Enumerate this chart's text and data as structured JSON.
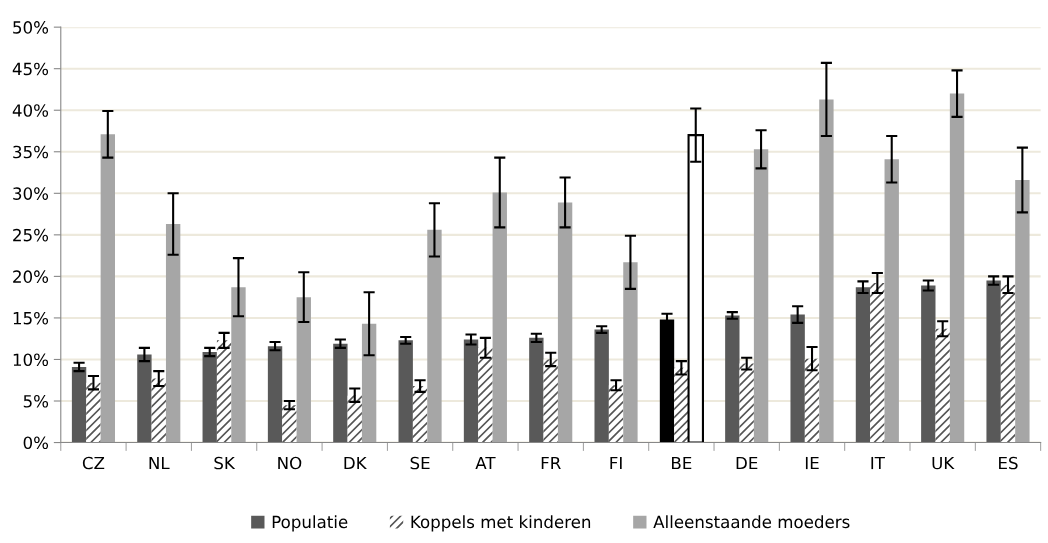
{
  "chart_data": {
    "type": "bar",
    "categories": [
      "CZ",
      "NL",
      "SK",
      "NO",
      "DK",
      "SE",
      "AT",
      "FR",
      "FI",
      "BE",
      "DE",
      "IE",
      "IT",
      "UK",
      "ES"
    ],
    "series": [
      {
        "name": "Populatie",
        "color": "#595959",
        "colors": [
          "#595959",
          "#595959",
          "#595959",
          "#595959",
          "#595959",
          "#595959",
          "#595959",
          "#595959",
          "#595959",
          "#000000",
          "#595959",
          "#595959",
          "#595959",
          "#595959",
          "#595959"
        ],
        "values": [
          9.1,
          10.6,
          10.9,
          11.6,
          11.9,
          12.3,
          12.4,
          12.6,
          13.6,
          14.8,
          15.3,
          15.4,
          18.7,
          18.9,
          19.5
        ],
        "errors": [
          0.5,
          0.8,
          0.5,
          0.5,
          0.5,
          0.4,
          0.6,
          0.5,
          0.4,
          0.7,
          0.4,
          1.0,
          0.7,
          0.6,
          0.5
        ]
      },
      {
        "name": "Koppels met kinderen",
        "color": "#ffffff",
        "values": [
          7.2,
          7.7,
          12.3,
          4.5,
          5.7,
          6.8,
          11.4,
          10.0,
          6.9,
          9.0,
          9.5,
          10.1,
          19.2,
          13.7,
          19.0
        ],
        "errors": [
          0.8,
          0.9,
          0.9,
          0.5,
          0.8,
          0.7,
          1.2,
          0.8,
          0.6,
          0.8,
          0.7,
          1.4,
          1.2,
          0.9,
          1.0
        ]
      },
      {
        "name": "Alleenstaande moeders",
        "color": "#a6a6a6",
        "colors": [
          "#a6a6a6",
          "#a6a6a6",
          "#a6a6a6",
          "#a6a6a6",
          "#a6a6a6",
          "#a6a6a6",
          "#a6a6a6",
          "#a6a6a6",
          "#a6a6a6",
          "#ffffff",
          "#a6a6a6",
          "#a6a6a6",
          "#a6a6a6",
          "#a6a6a6",
          "#a6a6a6"
        ],
        "values": [
          37.1,
          26.3,
          18.7,
          17.5,
          14.3,
          25.6,
          30.1,
          28.9,
          21.7,
          37.0,
          35.3,
          41.3,
          34.1,
          42.0,
          31.6
        ],
        "errors": [
          2.8,
          3.7,
          3.5,
          3.0,
          3.8,
          3.2,
          4.2,
          3.0,
          3.2,
          3.2,
          2.3,
          4.4,
          2.8,
          2.8,
          3.9
        ]
      }
    ],
    "ylim": [
      0,
      50
    ],
    "yticks": [
      {
        "value": 0,
        "label": "0%"
      },
      {
        "value": 5,
        "label": "5%"
      },
      {
        "value": 10,
        "label": "10%"
      },
      {
        "value": 15,
        "label": "15%"
      },
      {
        "value": 20,
        "label": "20%"
      },
      {
        "value": 25,
        "label": "25%"
      },
      {
        "value": 30,
        "label": "30%"
      },
      {
        "value": 35,
        "label": "35%"
      },
      {
        "value": 40,
        "label": "40%"
      },
      {
        "value": 45,
        "label": "45%"
      },
      {
        "value": 50,
        "label": "50%"
      }
    ],
    "grid": "y",
    "legend": "bottom"
  }
}
